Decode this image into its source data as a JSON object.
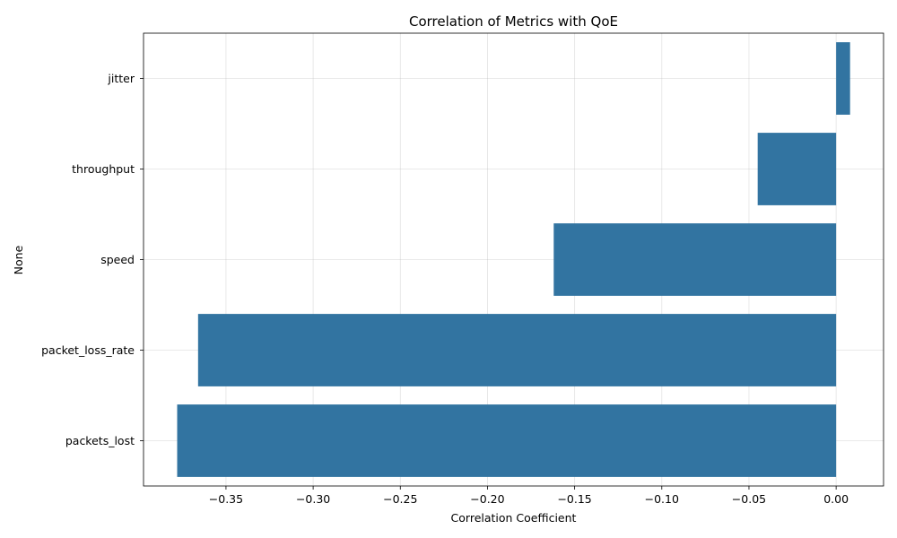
{
  "chart_data": {
    "type": "bar",
    "orientation": "horizontal",
    "title": "Correlation of Metrics with QoE",
    "xlabel": "Correlation Coefficient",
    "ylabel": "None",
    "categories": [
      "jitter",
      "throughput",
      "speed",
      "packet_loss_rate",
      "packets_lost"
    ],
    "values": [
      0.008,
      -0.045,
      -0.162,
      -0.366,
      -0.378
    ],
    "xlim": [
      -0.3973,
      0.0272
    ],
    "xticks": [
      -0.35,
      -0.3,
      -0.25,
      -0.2,
      -0.15,
      -0.1,
      -0.05,
      0.0
    ],
    "xtick_labels": [
      "−0.35",
      "−0.30",
      "−0.25",
      "−0.20",
      "−0.15",
      "−0.10",
      "−0.05",
      "0.00"
    ],
    "grid": true,
    "bar_color": "#3274a1"
  }
}
